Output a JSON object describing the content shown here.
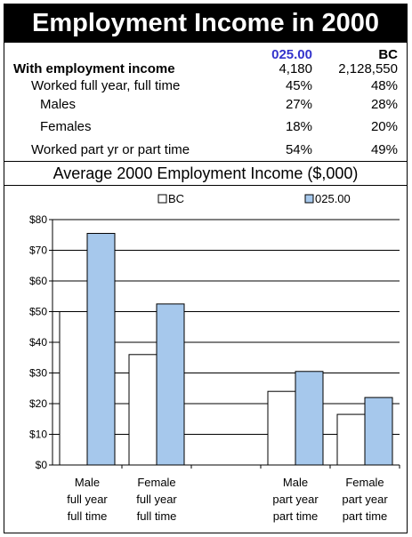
{
  "title": "Employment Income in 2000",
  "stats_table": {
    "columns": [
      "025.00",
      "BC"
    ],
    "rows": [
      {
        "label": "With employment income",
        "values": [
          "4,180",
          "2,128,550"
        ]
      },
      {
        "label": "Worked full year, full time",
        "values": [
          "45%",
          "48%"
        ]
      },
      {
        "label": "Males",
        "values": [
          "27%",
          "28%"
        ]
      },
      {
        "label": "Females",
        "values": [
          "18%",
          "20%"
        ]
      },
      {
        "label": "Worked part yr or part time",
        "values": [
          "54%",
          "49%"
        ]
      }
    ]
  },
  "colors": {
    "bc": "#ffffff",
    "area": "#a6c8ec",
    "header_column": "#3333cc"
  },
  "chart_data": {
    "type": "bar",
    "title": "Average 2000 Employment Income ($,000)",
    "legend_position": "top",
    "categories": [
      [
        "Male",
        "full year",
        "full time"
      ],
      [
        "Female",
        "full year",
        "full time"
      ],
      [],
      [
        "Male",
        "part year",
        "part time"
      ],
      [
        "Female",
        "part year",
        "part time"
      ]
    ],
    "series": [
      {
        "name": "BC",
        "values": [
          50,
          36,
          null,
          24,
          16.5
        ]
      },
      {
        "name": "025.00",
        "values": [
          75.5,
          52.5,
          null,
          30.5,
          22
        ]
      }
    ],
    "ylim": [
      0,
      80
    ],
    "yticks": [
      0,
      10,
      20,
      30,
      40,
      50,
      60,
      70,
      80
    ],
    "ytick_labels": [
      "$0",
      "$10",
      "$20",
      "$30",
      "$40",
      "$50",
      "$60",
      "$70",
      "$80"
    ],
    "grid": true
  }
}
